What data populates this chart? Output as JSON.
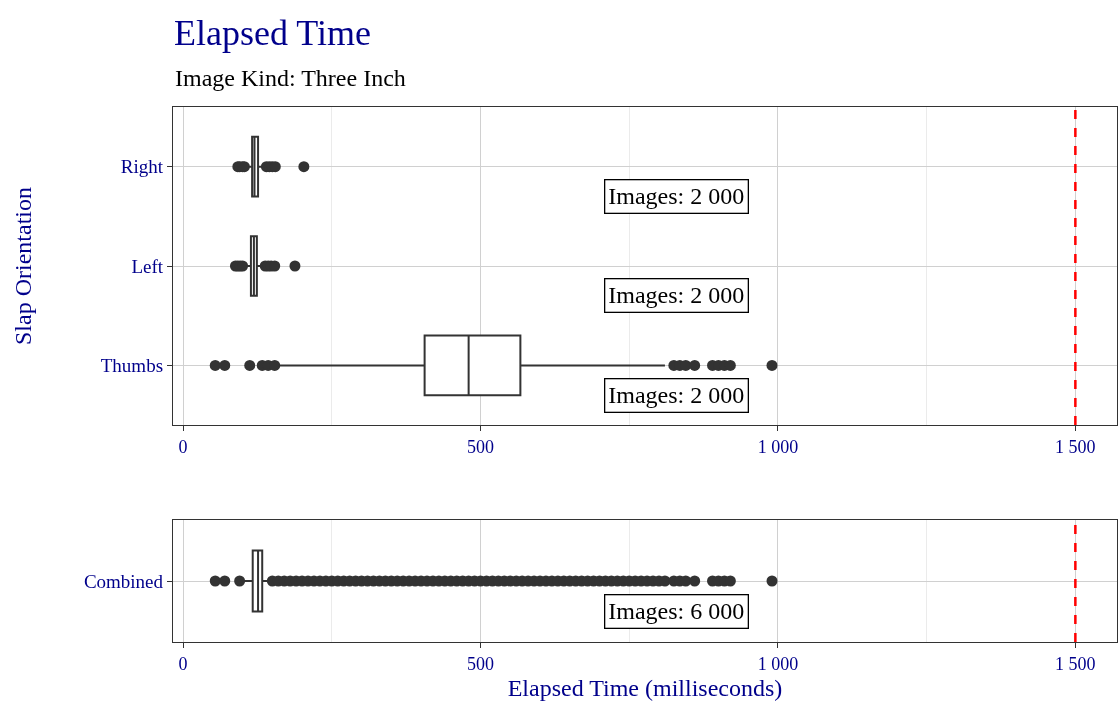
{
  "chart_data": [
    {
      "type": "box",
      "title": "Elapsed Time",
      "subtitle": "Image Kind: Three Inch",
      "ylabel": "Slap Orientation",
      "orientation": "horizontal",
      "categories": [
        "Right",
        "Left",
        "Thumbs"
      ],
      "boxes": [
        {
          "low": 110,
          "q1": 116,
          "median": 120,
          "q3": 126,
          "high": 133,
          "outliers": [
            92,
            95,
            100,
            103,
            140,
            145,
            150,
            155,
            203
          ]
        },
        {
          "low": 108,
          "q1": 114,
          "median": 119,
          "q3": 124,
          "high": 131,
          "outliers": [
            88,
            92,
            96,
            100,
            138,
            143,
            148,
            154,
            188
          ]
        },
        {
          "low": 160,
          "q1": 406,
          "median": 480,
          "q3": 567,
          "high": 810,
          "outliers": [
            54,
            70,
            112,
            133,
            143,
            154,
            825,
            835,
            845,
            860,
            890,
            900,
            910,
            920,
            990
          ]
        }
      ],
      "color": "#333333",
      "xlim": [
        -17,
        1570
      ],
      "xticks": [
        0,
        {
          "value": 250,
          "label": null
        },
        500,
        {
          "value": 750,
          "label": null
        },
        {
          "value": 1000,
          "label": "1 000"
        },
        {
          "value": 1250,
          "label": null
        },
        {
          "value": 1500,
          "label": "1 500"
        }
      ],
      "grid": true,
      "ref_lines": [
        {
          "axis": "x",
          "value": 1500,
          "color": "#ff0000",
          "line_style": "dashed"
        }
      ],
      "annotations": [
        "Images: 2 000",
        "Images: 2 000",
        "Images: 2 000"
      ]
    },
    {
      "type": "box",
      "xlabel": "Elapsed Time (milliseconds)",
      "orientation": "horizontal",
      "categories": [
        "Combined"
      ],
      "boxes": [
        {
          "low": 100,
          "q1": 117,
          "median": 126,
          "q3": 133,
          "high": 145,
          "outliers": [
            54,
            70,
            95,
            150,
            160,
            170,
            180,
            190,
            200,
            210,
            220,
            230,
            240,
            250,
            260,
            270,
            280,
            290,
            300,
            310,
            320,
            330,
            340,
            350,
            360,
            370,
            380,
            390,
            400,
            410,
            420,
            430,
            440,
            450,
            460,
            470,
            480,
            490,
            500,
            510,
            520,
            530,
            540,
            550,
            560,
            570,
            580,
            590,
            600,
            610,
            620,
            630,
            640,
            650,
            660,
            670,
            680,
            690,
            700,
            710,
            720,
            730,
            740,
            750,
            760,
            770,
            780,
            790,
            800,
            810,
            825,
            835,
            845,
            860,
            890,
            900,
            910,
            920,
            990
          ]
        }
      ],
      "color": "#333333",
      "xlim": [
        -17,
        1570
      ],
      "xticks": [
        0,
        {
          "value": 250,
          "label": null
        },
        500,
        {
          "value": 750,
          "label": null
        },
        {
          "value": 1000,
          "label": "1 000"
        },
        {
          "value": 1250,
          "label": null
        },
        {
          "value": 1500,
          "label": "1 500"
        }
      ],
      "grid": true,
      "ref_lines": [
        {
          "axis": "x",
          "value": 1500,
          "color": "#ff0000",
          "line_style": "dashed"
        }
      ],
      "annotations": [
        "Images: 6 000"
      ]
    }
  ]
}
